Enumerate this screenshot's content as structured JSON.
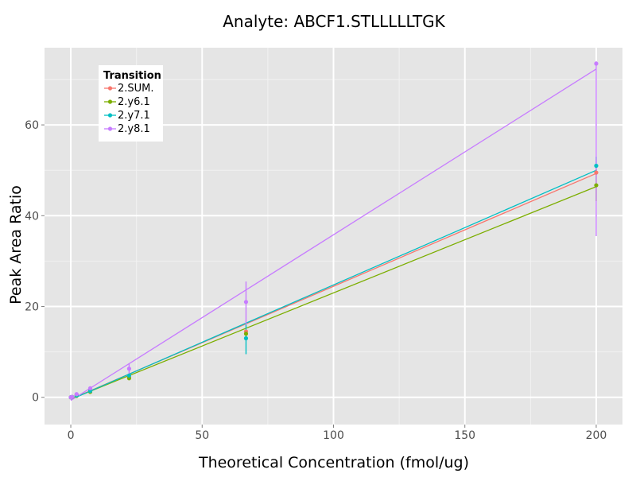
{
  "chart_data": {
    "type": "line",
    "title": "Analyte: ABCF1.STLLLLLTGK",
    "xlabel": "Theoretical Concentration (fmol/ug)",
    "ylabel": "Peak Area Ratio",
    "xlim": [
      -10,
      210
    ],
    "ylim": [
      -6,
      77
    ],
    "x_ticks": [
      0,
      50,
      100,
      150,
      200
    ],
    "y_ticks": [
      0,
      20,
      40,
      60
    ],
    "grid": true,
    "legend": {
      "title": "Transition",
      "position": "top-left"
    },
    "x": [
      0,
      0.5,
      2.2,
      7.4,
      22.2,
      66.7,
      200
    ],
    "series": [
      {
        "name": "2.SUM.",
        "color": "#F8766D",
        "points": [
          0,
          0.1,
          0.6,
          1.5,
          4.5,
          14.5,
          49.5
        ],
        "error_low": [
          null,
          null,
          null,
          null,
          null,
          null,
          null
        ],
        "error_high": [
          null,
          null,
          null,
          null,
          null,
          null,
          null
        ],
        "fit": [
          [
            0,
            -0.4
          ],
          [
            200,
            49.3
          ]
        ]
      },
      {
        "name": "2.y6.1",
        "color": "#7CAE00",
        "points": [
          0,
          0.05,
          0.3,
          1.2,
          4.2,
          14.0,
          46.7
        ],
        "error_low": [
          null,
          null,
          null,
          null,
          null,
          null,
          43.2
        ],
        "error_high": [
          null,
          null,
          null,
          null,
          null,
          null,
          50.2
        ],
        "fit": [
          [
            0,
            -0.4
          ],
          [
            200,
            46.4
          ]
        ]
      },
      {
        "name": "2.y7.1",
        "color": "#00BFC4",
        "points": [
          0,
          0.1,
          0.4,
          1.4,
          4.8,
          13.0,
          51.0
        ],
        "error_low": [
          null,
          null,
          null,
          null,
          null,
          9.5,
          49.0
        ],
        "error_high": [
          null,
          null,
          null,
          null,
          null,
          16.0,
          53.0
        ],
        "fit": [
          [
            0,
            -0.5
          ],
          [
            200,
            50.0
          ]
        ]
      },
      {
        "name": "2.y8.1",
        "color": "#C77CFF",
        "points": [
          0,
          0.1,
          0.7,
          2.0,
          6.3,
          21.0,
          73.5
        ],
        "error_low": [
          null,
          null,
          null,
          null,
          5.2,
          16.0,
          35.5
        ],
        "error_high": [
          null,
          null,
          null,
          null,
          7.5,
          25.5,
          74.0
        ],
        "fit": [
          [
            0,
            -0.7
          ],
          [
            200,
            72.3
          ]
        ]
      }
    ]
  },
  "theme": {
    "panel_background": "#E5E5E5",
    "grid_major": "#FFFFFF",
    "grid_minor": "#F2F2F2",
    "tick_text": "#4D4D4D",
    "legend_background": "#FFFFFF"
  }
}
